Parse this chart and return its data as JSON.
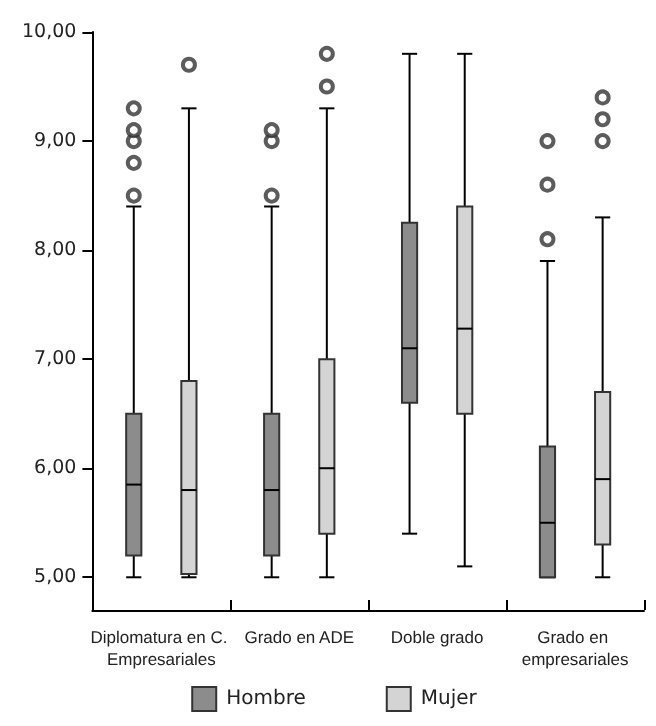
{
  "chart_data": {
    "type": "box",
    "categories": [
      "Diplomatura en C. Empresariales",
      "Grado en ADE",
      "Doble grado",
      "Grado en empresariales"
    ],
    "ylim": [
      4.7,
      10
    ],
    "yticks": [
      {
        "value": 5,
        "label": "5,00"
      },
      {
        "value": 6,
        "label": "6,00"
      },
      {
        "value": 7,
        "label": "7,00"
      },
      {
        "value": 8,
        "label": "8,00"
      },
      {
        "value": 9,
        "label": "9,00"
      },
      {
        "value": 10,
        "label": "10,00"
      }
    ],
    "grid": false,
    "legend": "bottom",
    "marker": "circle",
    "series": [
      {
        "name": "Hombre",
        "color": "#8c8c8c",
        "boxes": [
          {
            "low": 5.0,
            "q1": 5.2,
            "median": 5.85,
            "q3": 6.5,
            "high": 8.4,
            "outliers": [
              8.5,
              8.8,
              9.0,
              9.1,
              9.3
            ]
          },
          {
            "low": 5.0,
            "q1": 5.2,
            "median": 5.8,
            "q3": 6.5,
            "high": 8.4,
            "outliers": [
              8.5,
              9.0,
              9.1
            ]
          },
          {
            "low": 5.4,
            "q1": 6.6,
            "median": 7.1,
            "q3": 8.25,
            "high": 9.8
          },
          {
            "low": 5.0,
            "q1": 5.0,
            "median": 5.5,
            "q3": 6.2,
            "high": 7.9,
            "outliers": [
              8.1,
              8.6,
              9.0
            ]
          }
        ]
      },
      {
        "name": "Mujer",
        "color": "#d4d4d4",
        "boxes": [
          {
            "low": 5.0,
            "q1": 5.03,
            "median": 5.8,
            "q3": 6.8,
            "high": 9.3,
            "outliers": [
              9.7
            ]
          },
          {
            "low": 5.0,
            "q1": 5.4,
            "median": 6.0,
            "q3": 7.0,
            "high": 9.3,
            "outliers": [
              9.5,
              9.8
            ]
          },
          {
            "low": 5.1,
            "q1": 6.5,
            "median": 7.28,
            "q3": 8.4,
            "high": 9.8
          },
          {
            "low": 5.0,
            "q1": 5.3,
            "median": 5.9,
            "q3": 6.7,
            "high": 8.3,
            "outliers": [
              9.0,
              9.2,
              9.4
            ]
          }
        ]
      }
    ]
  }
}
